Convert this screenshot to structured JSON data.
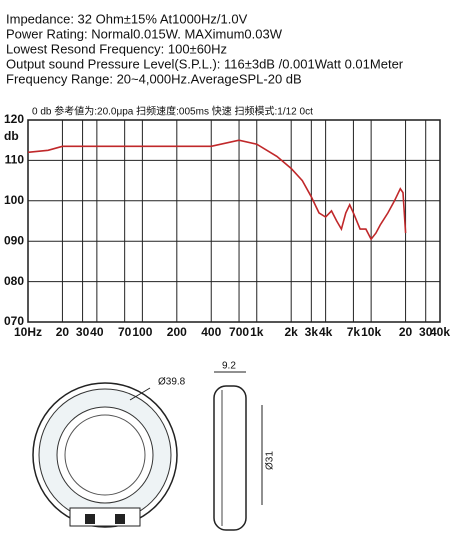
{
  "header": {
    "lines": [
      "Impedance: 32 Ohm±15% At1000Hz/1.0V",
      "Power Rating: Normal0.015W. MAXimum0.03W",
      "Lowest Resond Frequency: 100±60Hz",
      "Output sound Pressure Level(S.P.L.): 116±3dB /0.001Watt 0.01Meter",
      "Frequency Range: 20~4,000Hz.AverageSPL-20 dB"
    ]
  },
  "chart_data": {
    "type": "line",
    "title": "0 db  参考値为:20.0μpa  扫频速度:005ms  快速   扫频模式:1/12  0ct",
    "y_label": "db",
    "x": [
      10,
      15,
      20,
      50,
      100,
      200,
      400,
      700,
      1000,
      1500,
      2000,
      2500,
      3000,
      3500,
      4000,
      4500,
      5000,
      5500,
      6000,
      6500,
      7000,
      8000,
      9000,
      10000,
      11000,
      12000,
      14000,
      16000,
      18000,
      19000,
      20000
    ],
    "values": [
      112,
      112.5,
      113.5,
      113.5,
      113.5,
      113.5,
      113.5,
      115,
      114,
      111,
      108,
      105,
      101,
      97,
      96,
      97.5,
      95,
      93,
      97,
      99,
      97,
      93,
      93,
      90.5,
      92,
      94,
      97,
      100,
      103,
      102,
      92
    ],
    "color": "#c0282a",
    "xscale": "log",
    "xlim": [
      10,
      40000
    ],
    "xticks": [
      {
        "value": 10,
        "label": "10Hz"
      },
      20,
      30,
      40,
      70,
      100,
      200,
      400,
      700,
      {
        "value": 1000,
        "label": "1k"
      },
      {
        "value": 2000,
        "label": "2k"
      },
      {
        "value": 3000,
        "label": "3k"
      },
      {
        "value": 4000,
        "label": "4k"
      },
      {
        "value": 7000,
        "label": "7k"
      },
      {
        "value": 10000,
        "label": "10k"
      },
      {
        "value": 20000,
        "label": "20"
      },
      {
        "value": 30000,
        "label": "30"
      },
      {
        "value": 40000,
        "label": "40k"
      }
    ],
    "ylim": [
      70,
      120
    ],
    "yticks": [
      120,
      110,
      100,
      {
        "value": 90,
        "label": "090"
      },
      {
        "value": 80,
        "label": "080"
      },
      {
        "value": 70,
        "label": "070"
      }
    ],
    "grid": true
  },
  "drawing": {
    "diameter": "Ø39.8",
    "thickness": "9.2",
    "inner_diameter": "Ø31"
  }
}
